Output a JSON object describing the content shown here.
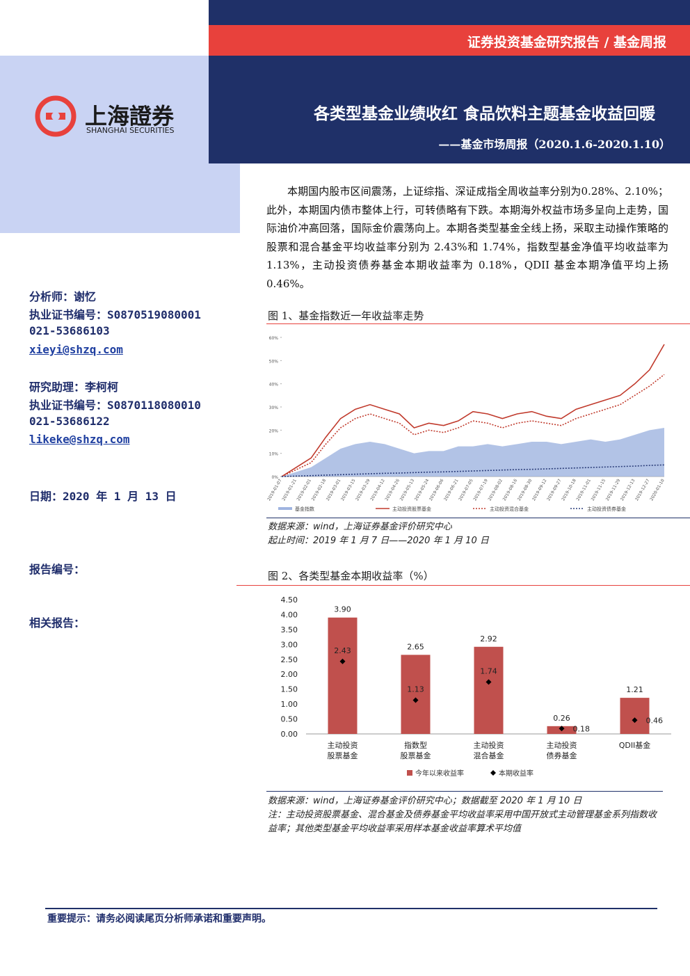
{
  "header": {
    "banner": "证券投资基金研究报告 / 基金周报",
    "logo_cn": "上海證券",
    "logo_en": "SHANGHAI SECURITIES",
    "title": "各类型基金业绩收红 食品饮料主题基金收益回暖",
    "subtitle": "——基金市场周报（2020.1.6-2020.1.10）"
  },
  "sidebar": {
    "analyst": "分析师：谢忆",
    "analyst_cert": "执业证书编号：S0870519080001",
    "analyst_phone": "021-53686103",
    "analyst_email": "xieyi@shzq.com",
    "assistant": "研究助理：李柯柯",
    "assistant_cert": "执业证书编号：S0870118080010",
    "assistant_phone": "021-53686122",
    "assistant_email": "likeke@shzq.com",
    "date": "日期：2020 年 1 月 13 日",
    "report_no": "报告编号：",
    "related": "相关报告："
  },
  "body": {
    "paragraph": "本期国内股市区间震荡，上证综指、深证成指全周收益率分别为0.28%、2.10%；此外，本期国内债市整体上行，可转债略有下跌。本期海外权益市场多呈向上走势，国际油价冲高回落，国际金价震荡向上。本期各类型基金全线上扬，采取主动操作策略的股票和混合基金平均收益率分别为 2.43%和 1.74%，指数型基金净值平均收益率为 1.13%，主动投资债券基金本期收益率为 0.18%，QDII 基金本期净值平均上扬 0.46%。",
    "fig1_caption": "图 1、基金指数近一年收益率走势",
    "fig1_source": "数据来源：wind，上海证券基金评价研究中心",
    "fig1_period": "起止时间：2019 年 1 月 7 日——2020 年 1 月 10 日",
    "fig2_caption": "图 2、各类型基金本期收益率（%）",
    "fig2_source": "数据来源：wind，上海证券基金评价研究中心；数据截至 2020 年 1 月 10 日",
    "fig2_note": "注：主动投资股票基金、混合基金及债券基金平均收益率采用中国开放式主动管理基金系列指数收益率；其他类型基金平均收益率采用样本基金收益率算术平均值"
  },
  "footer": {
    "notice": "重要提示：请务必阅读尾页分析师承诺和重要声明。"
  },
  "chart_data": [
    {
      "type": "line",
      "categories": [
        "2019-01-07",
        "2019-01-21",
        "2019-02-01",
        "2019-02-18",
        "2019-03-01",
        "2019-03-15",
        "2019-03-29",
        "2019-04-12",
        "2019-04-26",
        "2019-05-13",
        "2019-05-24",
        "2019-06-06",
        "2019-06-21",
        "2019-07-05",
        "2019-07-19",
        "2019-08-02",
        "2019-08-16",
        "2019-08-30",
        "2019-09-12",
        "2019-09-27",
        "2019-10-18",
        "2019-11-01",
        "2019-11-15",
        "2019-11-29",
        "2019-12-13",
        "2019-12-27",
        "2020-01-10"
      ],
      "series": [
        {
          "name": "基金指数",
          "color": "#9fb4e0",
          "style": "area",
          "values": [
            0,
            2,
            4,
            8,
            12,
            14,
            15,
            14,
            12,
            10,
            11,
            11,
            13,
            13,
            14,
            13,
            14,
            15,
            15,
            14,
            15,
            16,
            15,
            16,
            18,
            20,
            21
          ]
        },
        {
          "name": "主动投资股票基金",
          "color": "#c0392b",
          "style": "solid",
          "values": [
            0,
            4,
            8,
            17,
            25,
            29,
            31,
            29,
            27,
            21,
            23,
            22,
            24,
            28,
            27,
            25,
            27,
            28,
            26,
            25,
            29,
            31,
            33,
            35,
            40,
            46,
            57
          ]
        },
        {
          "name": "主动投资混合基金",
          "color": "#c0392b",
          "style": "dotted",
          "values": [
            0,
            3,
            6,
            14,
            21,
            25,
            27,
            25,
            23,
            18,
            20,
            19,
            21,
            24,
            23,
            21,
            23,
            24,
            23,
            22,
            25,
            27,
            29,
            31,
            35,
            39,
            44
          ]
        },
        {
          "name": "主动投资债券基金",
          "color": "#2c3e7a",
          "style": "dotted",
          "values": [
            0,
            0.2,
            0.4,
            0.6,
            0.8,
            1,
            1.2,
            1.4,
            1.5,
            1.7,
            1.9,
            2,
            2.2,
            2.4,
            2.6,
            2.8,
            3,
            3.1,
            3.3,
            3.5,
            3.7,
            3.9,
            4.1,
            4.3,
            4.5,
            4.8,
            5
          ]
        }
      ],
      "ylim": [
        0,
        60
      ],
      "yticks": [
        {
          "value": 0,
          "label": "0%"
        },
        {
          "value": 10,
          "label": "10%"
        },
        {
          "value": 20,
          "label": "20%"
        },
        {
          "value": 30,
          "label": "30%"
        },
        {
          "value": 40,
          "label": "40%"
        },
        {
          "value": 50,
          "label": "50%"
        },
        {
          "value": 60,
          "label": "60%"
        }
      ]
    },
    {
      "type": "bar",
      "categories": [
        "主动投资\n股票基金",
        "指数型\n股票基金",
        "主动投资\n混合基金",
        "主动投资\n债券基金",
        "QDII基金"
      ],
      "series": [
        {
          "name": "今年以来收益率",
          "color": "#c0504d",
          "values": [
            3.9,
            2.65,
            2.92,
            0.26,
            1.21
          ],
          "value_labels": [
            "3.90",
            "2.65",
            "2.92",
            "0.26",
            "1.21"
          ]
        },
        {
          "name": "本期收益率",
          "color": "#000000",
          "style": "point",
          "values": [
            2.43,
            1.13,
            1.74,
            0.18,
            0.46
          ],
          "value_labels": [
            "2.43",
            "1.13",
            "1.74",
            "0.18",
            "0.46"
          ]
        }
      ],
      "ylim": [
        0,
        4.5
      ],
      "yticks": [
        {
          "value": 0,
          "label": "0.00"
        },
        {
          "value": 0.5,
          "label": "0.50"
        },
        {
          "value": 1,
          "label": "1.00"
        },
        {
          "value": 1.5,
          "label": "1.50"
        },
        {
          "value": 2,
          "label": "2.00"
        },
        {
          "value": 2.5,
          "label": "2.50"
        },
        {
          "value": 3,
          "label": "3.00"
        },
        {
          "value": 3.5,
          "label": "3.50"
        },
        {
          "value": 4,
          "label": "4.00"
        },
        {
          "value": 4.5,
          "label": "4.50"
        }
      ]
    }
  ]
}
